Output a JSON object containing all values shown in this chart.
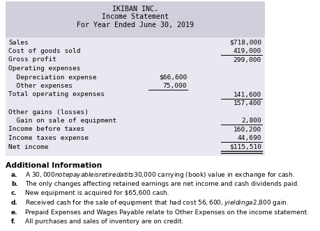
{
  "title_line1": "IKIBAN INC.",
  "title_line2": "Income Statement",
  "title_line3": "For Year Ended June 30, 2019",
  "header_bg": "#d0d0dc",
  "body_bg": "#e8e8f0",
  "bg_color": "#ffffff",
  "income_rows": [
    {
      "label": "Sales",
      "indent": false,
      "col1": "",
      "col2": "$718,000",
      "ul1": false,
      "ul2": false,
      "du2": false
    },
    {
      "label": "Cost of goods sold",
      "indent": false,
      "col1": "",
      "col2": "419,000",
      "ul1": false,
      "ul2": true,
      "du2": false
    },
    {
      "label": "Gross profit",
      "indent": false,
      "col1": "",
      "col2": "299,000",
      "ul1": false,
      "ul2": false,
      "du2": false
    },
    {
      "label": "Operating expenses",
      "indent": false,
      "col1": "",
      "col2": "",
      "ul1": false,
      "ul2": false,
      "du2": false
    },
    {
      "label": "  Depreciation expense",
      "indent": true,
      "col1": "$66,600",
      "col2": "",
      "ul1": false,
      "ul2": false,
      "du2": false
    },
    {
      "label": "  Other expenses",
      "indent": true,
      "col1": "75,000",
      "col2": "",
      "ul1": true,
      "ul2": false,
      "du2": false
    },
    {
      "label": "Total operating expenses",
      "indent": false,
      "col1": "",
      "col2": "141,600",
      "ul1": false,
      "ul2": true,
      "du2": false
    },
    {
      "label": "",
      "indent": false,
      "col1": "",
      "col2": "157,400",
      "ul1": false,
      "ul2": false,
      "du2": false
    },
    {
      "label": "Other gains (losses)",
      "indent": false,
      "col1": "",
      "col2": "",
      "ul1": false,
      "ul2": false,
      "du2": false
    },
    {
      "label": "  Gain on sale of equipment",
      "indent": true,
      "col1": "",
      "col2": "2,800",
      "ul1": false,
      "ul2": true,
      "du2": false
    },
    {
      "label": "Income before taxes",
      "indent": false,
      "col1": "",
      "col2": "160,200",
      "ul1": false,
      "ul2": false,
      "du2": false
    },
    {
      "label": "Income taxes expense",
      "indent": false,
      "col1": "",
      "col2": "44,690",
      "ul1": false,
      "ul2": true,
      "du2": false
    },
    {
      "label": "Net income",
      "indent": false,
      "col1": "",
      "col2": "$115,510",
      "ul1": false,
      "ul2": false,
      "du2": true
    }
  ],
  "add_title": "Additional Information",
  "add_letters": [
    "a.",
    "b.",
    "c.",
    "d.",
    "e.",
    "f."
  ],
  "add_texts": [
    "A $30,000 note payable is retired at its $30,000 carrying (book) value in exchange for cash.",
    "The only changes affecting retained earnings are net income and cash dividends paid.",
    "New equipment is acquired for $65,600 cash.",
    "Received cash for the sale of equipment that had cost $56,600, yielding a $2,800 gain.",
    "Prepaid Expenses and Wages Payable relate to Other Expenses on the income statement.",
    "All purchases and sales of inventory are on credit."
  ]
}
